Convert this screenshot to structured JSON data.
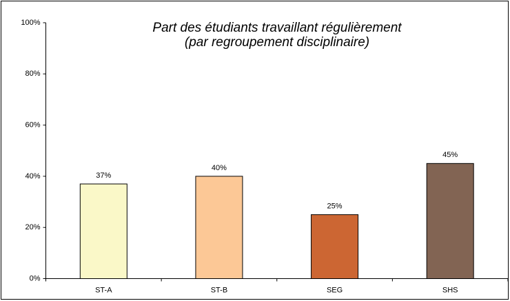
{
  "chart_data": {
    "type": "bar",
    "title": "Part des étudiants travaillant régulièrement",
    "subtitle": "(par regroupement disciplinaire)",
    "categories": [
      "ST-A",
      "ST-B",
      "SEG",
      "SHS"
    ],
    "values": [
      37,
      40,
      25,
      45
    ],
    "value_labels": [
      "37%",
      "40%",
      "25%",
      "45%"
    ],
    "colors": [
      "#faf8c8",
      "#fcc896",
      "#cc6633",
      "#826453"
    ],
    "ylim": [
      0,
      100
    ],
    "yticks": [
      {
        "value": 0,
        "label": "0%"
      },
      {
        "value": 20,
        "label": "20%"
      },
      {
        "value": 40,
        "label": "40%"
      },
      {
        "value": 60,
        "label": "60%"
      },
      {
        "value": 80,
        "label": "80%"
      },
      {
        "value": 100,
        "label": "100%"
      }
    ],
    "grid": false
  }
}
